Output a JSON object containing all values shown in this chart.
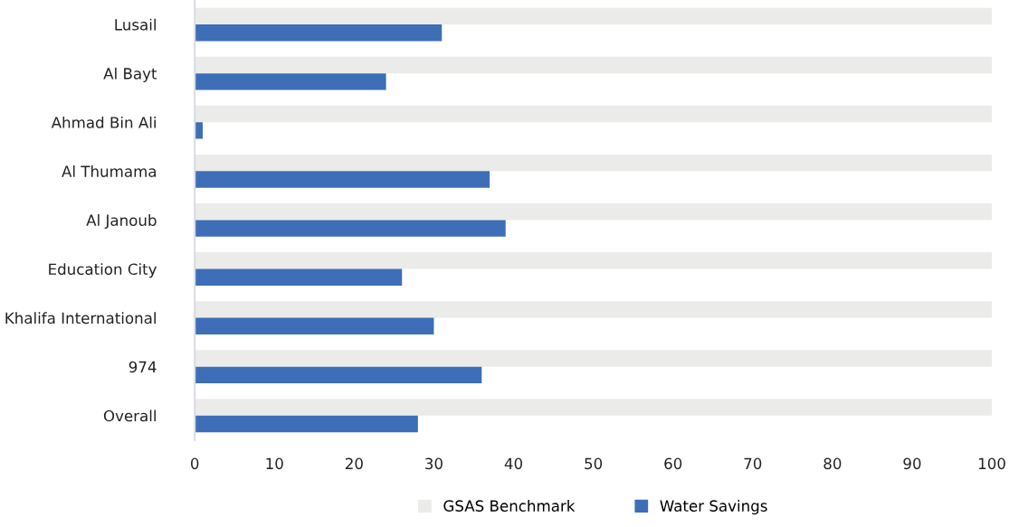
{
  "chart_data": {
    "type": "bar",
    "orientation": "horizontal",
    "categories": [
      "Lusail",
      "Al Bayt",
      "Ahmad Bin Ali",
      "Al Thumama",
      "Al Janoub",
      "Education City",
      "Khalifa International",
      "974",
      "Overall"
    ],
    "series": [
      {
        "name": "GSAS Benchmark",
        "color": "#ebebe9",
        "values": [
          100,
          100,
          100,
          100,
          100,
          100,
          100,
          100,
          100
        ]
      },
      {
        "name": "Water Savings",
        "color": "#3d6eb7",
        "values": [
          31,
          24,
          1,
          37,
          39,
          26,
          30,
          36,
          28
        ]
      }
    ],
    "xlim": [
      0,
      100
    ],
    "xticks": [
      0,
      10,
      20,
      30,
      40,
      50,
      60,
      70,
      80,
      90,
      100
    ],
    "grid": false,
    "legend": "bottom"
  }
}
